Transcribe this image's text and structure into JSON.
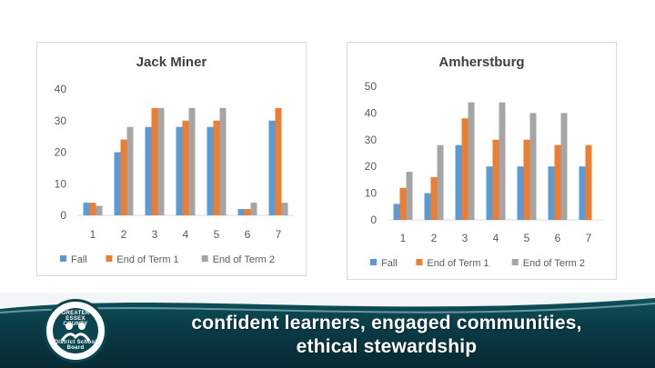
{
  "chart_data": [
    {
      "type": "bar",
      "title": "Jack Miner",
      "categories": [
        "1",
        "2",
        "3",
        "4",
        "5",
        "6",
        "7"
      ],
      "series": [
        {
          "name": "Fall",
          "values": [
            4,
            20,
            28,
            28,
            28,
            2,
            30
          ]
        },
        {
          "name": "End of Term 1",
          "values": [
            4,
            24,
            34,
            30,
            30,
            2,
            34
          ]
        },
        {
          "name": "End of Term 2",
          "values": [
            3,
            28,
            34,
            34,
            34,
            4,
            4
          ]
        }
      ],
      "ylim": [
        0,
        40
      ],
      "yticks": [
        0,
        10,
        20,
        30,
        40
      ],
      "legend": "bottom",
      "grid": false
    },
    {
      "type": "bar",
      "title": "Amherstburg",
      "categories": [
        "1",
        "2",
        "3",
        "4",
        "5",
        "6",
        "7"
      ],
      "series": [
        {
          "name": "Fall",
          "values": [
            6,
            10,
            28,
            20,
            20,
            20,
            20
          ]
        },
        {
          "name": "End of Term 1",
          "values": [
            12,
            16,
            38,
            30,
            30,
            28,
            28
          ]
        },
        {
          "name": "End of Term 2",
          "values": [
            18,
            28,
            44,
            44,
            40,
            40,
            null
          ]
        }
      ],
      "ylim": [
        0,
        50
      ],
      "yticks": [
        0,
        10,
        20,
        30,
        40,
        50
      ],
      "legend": "bottom",
      "grid": false
    }
  ],
  "colors": {
    "fall": "#5b9bd5",
    "term1": "#ed7d31",
    "term2": "#a5a5a5"
  },
  "footer": {
    "slogan_line_1": "confident learners, engaged communities,",
    "slogan_line_2": "ethical stewardship",
    "logo_top": "GREATER ESSEX COUNTY",
    "logo_bottom": "District School Board"
  }
}
